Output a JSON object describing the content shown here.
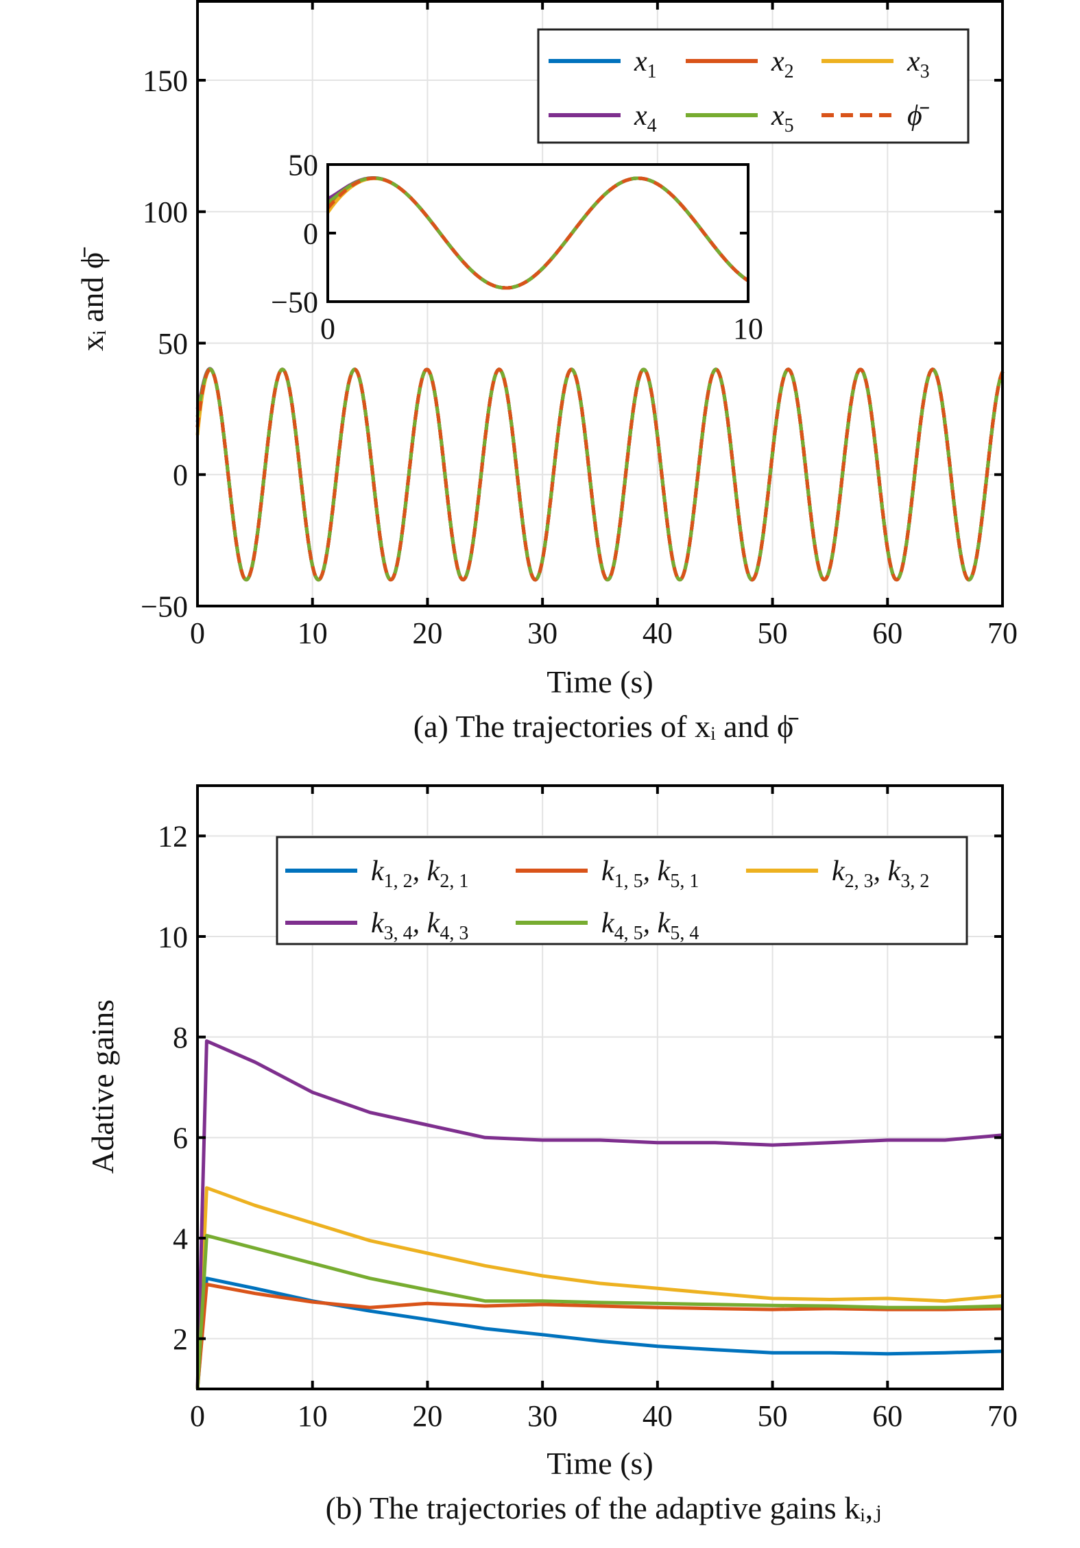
{
  "colors": {
    "x1": "#0072BD",
    "x2": "#D95319",
    "x3": "#EDB120",
    "x4": "#7E2F8E",
    "x5": "#77AC30",
    "grid": "#e3e3e3"
  },
  "chart_data": [
    {
      "type": "line",
      "xlabel": "Time (s)",
      "ylabel": "xᵢ and ϕ̄",
      "caption": "(a) The trajectories of xᵢ and ϕ̄",
      "xlim": [
        0,
        70
      ],
      "ylim": [
        -50,
        180
      ],
      "xticks": [
        "0",
        "10",
        "20",
        "30",
        "40",
        "50",
        "60",
        "70"
      ],
      "yticks": [
        "−50",
        "0",
        "50",
        "100",
        "150"
      ],
      "grid": true,
      "legend_placement": "top-right",
      "reference": {
        "name": "ϕ̄",
        "style": "dashed",
        "color": "#D95319",
        "t": [
          0,
          1.1,
          4.24,
          7.38,
          10.52,
          13.67,
          16.81,
          19.95,
          23.09,
          26.23,
          29.37,
          32.52,
          35.66,
          38.8,
          41.94,
          45.08,
          48.22,
          51.37,
          54.51,
          57.65,
          60.79,
          63.93,
          67.08,
          70
        ],
        "y": [
          18.1,
          40,
          -40,
          40,
          -40,
          40,
          -40,
          40,
          -40,
          40,
          -40,
          40,
          -40,
          40,
          -40,
          40,
          -40,
          40,
          -40,
          40,
          -40,
          40,
          -40,
          39.1
        ]
      },
      "series": [
        {
          "name": "x",
          "sub": "1",
          "color": "#0072BD",
          "initial": 20
        },
        {
          "name": "x",
          "sub": "2",
          "color": "#D95319",
          "initial": 18
        },
        {
          "name": "x",
          "sub": "3",
          "color": "#EDB120",
          "initial": 15
        },
        {
          "name": "x",
          "sub": "4",
          "color": "#7E2F8E",
          "initial": 25
        },
        {
          "name": "x",
          "sub": "5",
          "color": "#77AC30",
          "initial": 22
        }
      ],
      "inset": {
        "xlim": [
          0,
          10
        ],
        "ylim": [
          -50,
          50
        ],
        "xticks": [
          "0",
          "10"
        ],
        "yticks": [
          "−50",
          "0",
          "50"
        ]
      }
    },
    {
      "type": "line",
      "xlabel": "Time (s)",
      "ylabel": "Adative gains",
      "caption": "(b) The trajectories of the adaptive gains kᵢ,ⱼ",
      "xlim": [
        0,
        70
      ],
      "ylim": [
        1,
        13
      ],
      "xticks": [
        "0",
        "10",
        "20",
        "30",
        "40",
        "50",
        "60",
        "70"
      ],
      "yticks": [
        "2",
        "4",
        "6",
        "8",
        "10",
        "12"
      ],
      "grid": true,
      "legend_placement": "top",
      "t": [
        0,
        0.8,
        5,
        10,
        15,
        20,
        25,
        30,
        35,
        40,
        45,
        50,
        55,
        60,
        65,
        70
      ],
      "series": [
        {
          "name": "k",
          "sub": "1, 2",
          "name2": "k",
          "sub2": "2, 1",
          "color": "#0072BD",
          "y": [
            1,
            3.2,
            3.0,
            2.75,
            2.55,
            2.38,
            2.2,
            2.08,
            1.95,
            1.85,
            1.78,
            1.72,
            1.72,
            1.7,
            1.72,
            1.75
          ]
        },
        {
          "name": "k",
          "sub": "1, 5",
          "name2": "k",
          "sub2": "5, 1",
          "color": "#D95319",
          "y": [
            1,
            3.08,
            2.9,
            2.73,
            2.62,
            2.7,
            2.65,
            2.68,
            2.65,
            2.62,
            2.6,
            2.58,
            2.6,
            2.58,
            2.58,
            2.6
          ]
        },
        {
          "name": "k",
          "sub": "2, 3",
          "name2": "k",
          "sub2": "3, 2",
          "color": "#EDB120",
          "y": [
            1,
            5.0,
            4.65,
            4.3,
            3.95,
            3.7,
            3.45,
            3.25,
            3.1,
            3.0,
            2.9,
            2.8,
            2.78,
            2.8,
            2.75,
            2.85
          ]
        },
        {
          "name": "k",
          "sub": "3, 4",
          "name2": "k",
          "sub2": "4, 3",
          "color": "#7E2F8E",
          "y": [
            1,
            7.92,
            7.5,
            6.9,
            6.5,
            6.25,
            6.0,
            5.95,
            5.95,
            5.9,
            5.9,
            5.85,
            5.9,
            5.95,
            5.95,
            6.05
          ]
        },
        {
          "name": "k",
          "sub": "4, 5",
          "name2": "k",
          "sub2": "5, 4",
          "color": "#77AC30",
          "y": [
            1,
            4.05,
            3.8,
            3.5,
            3.2,
            2.97,
            2.75,
            2.75,
            2.72,
            2.7,
            2.68,
            2.66,
            2.65,
            2.62,
            2.62,
            2.65
          ]
        }
      ]
    }
  ]
}
